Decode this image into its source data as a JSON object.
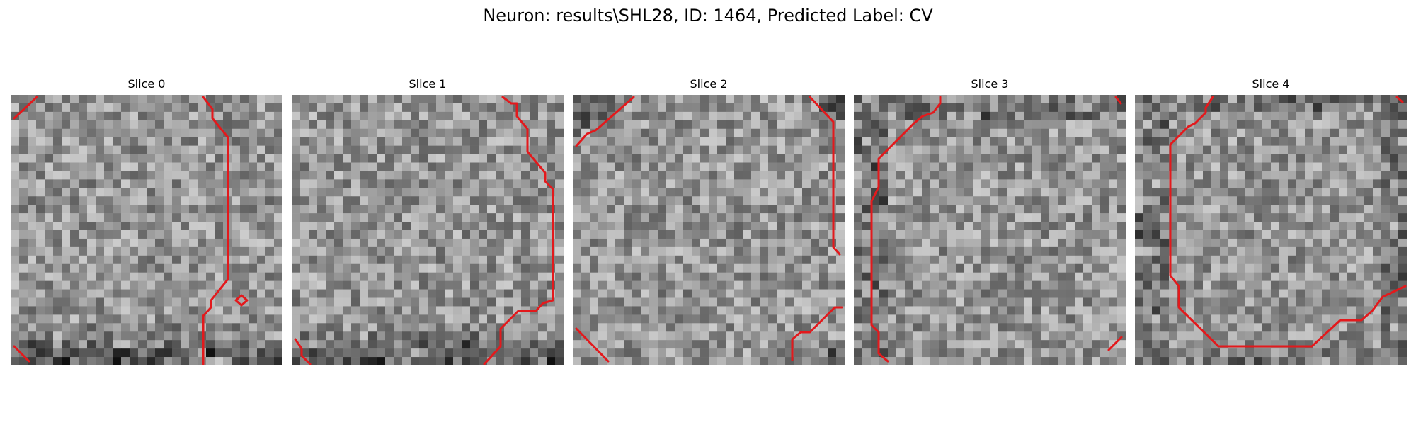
{
  "figure": {
    "title": "Neuron: results\\SHL28, ID: 1464, Predicted Label: CV"
  },
  "slices": [
    {
      "title": "Slice 0",
      "seed": 11,
      "dark_rows": "bottom"
    },
    {
      "title": "Slice 1",
      "seed": 23,
      "dark_rows": "bottom"
    },
    {
      "title": "Slice 2",
      "seed": 37,
      "dark_rows": "corners"
    },
    {
      "title": "Slice 3",
      "seed": 41,
      "dark_rows": "left"
    },
    {
      "title": "Slice 4",
      "seed": 53,
      "dark_rows": "edges"
    }
  ],
  "colors": {
    "contour": "#e3191c",
    "background": "#ffffff"
  },
  "image": {
    "colormap": "gray",
    "grid": false
  }
}
